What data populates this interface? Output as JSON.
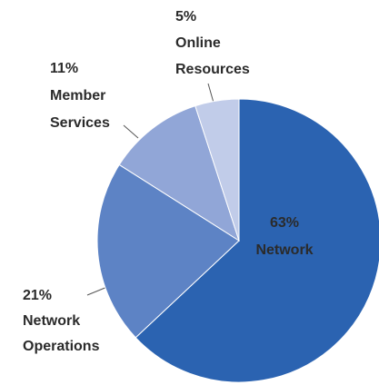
{
  "chart_data": {
    "type": "pie",
    "categories": [
      "Network",
      "Network Operations",
      "Member Services",
      "Online Resources"
    ],
    "values": [
      63,
      21,
      11,
      5
    ],
    "value_labels": [
      "63%",
      "21%",
      "11%",
      "5%"
    ],
    "colors": [
      "#2b63b1",
      "#5d83c5",
      "#91a6d7",
      "#c1cce9"
    ]
  }
}
